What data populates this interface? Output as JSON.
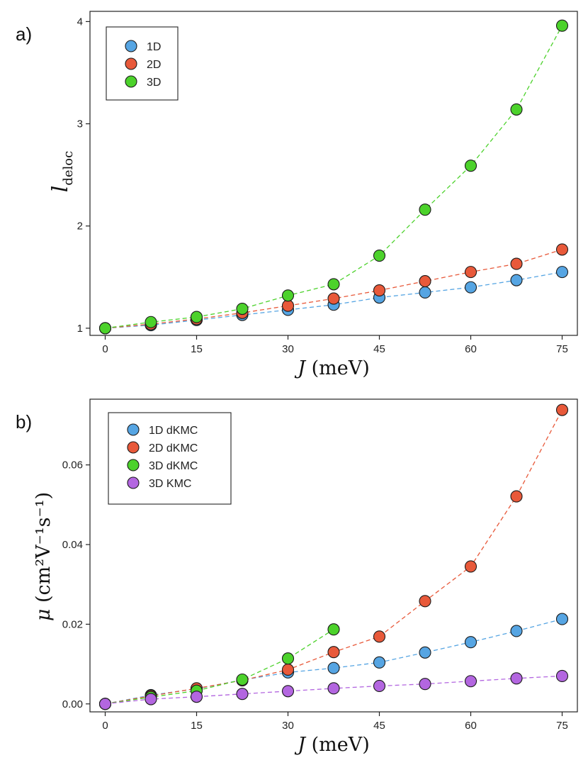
{
  "chart_data": [
    {
      "type": "line",
      "panel_label": "a)",
      "xlabel": {
        "sym": "J",
        "unit": " (meV)"
      },
      "ylabel": {
        "sym": "l",
        "sub": "deloc"
      },
      "xlim": [
        -2.5,
        77.5
      ],
      "ylim": [
        0.93,
        4.1
      ],
      "xticks": [
        0,
        15,
        30,
        45,
        60,
        75
      ],
      "yticks": [
        1,
        2,
        3,
        4
      ],
      "ytick_labels": [
        "1",
        "2",
        "3",
        "4"
      ],
      "legend_position": "top-left",
      "series": [
        {
          "name": "1D",
          "color": "#56a5e3",
          "x": [
            0,
            7.5,
            15,
            22.5,
            30,
            37.5,
            45,
            52.5,
            60,
            67.5,
            75
          ],
          "y": [
            1.0,
            1.03,
            1.08,
            1.13,
            1.18,
            1.23,
            1.3,
            1.35,
            1.4,
            1.47,
            1.55
          ]
        },
        {
          "name": "2D",
          "color": "#e8593a",
          "x": [
            0,
            7.5,
            15,
            22.5,
            30,
            37.5,
            45,
            52.5,
            60,
            67.5,
            75
          ],
          "y": [
            1.0,
            1.04,
            1.09,
            1.15,
            1.22,
            1.29,
            1.37,
            1.46,
            1.55,
            1.63,
            1.77
          ]
        },
        {
          "name": "3D",
          "color": "#4cd22b",
          "x": [
            0,
            7.5,
            15,
            22.5,
            30,
            37.5,
            45,
            52.5,
            60,
            67.5,
            75
          ],
          "y": [
            1.0,
            1.06,
            1.11,
            1.19,
            1.32,
            1.43,
            1.71,
            2.16,
            2.59,
            3.14,
            3.96
          ]
        }
      ]
    },
    {
      "type": "line",
      "panel_label": "b)",
      "xlabel": {
        "sym": "J",
        "unit": " (meV)"
      },
      "ylabel": {
        "sym": "μ",
        "unit": "cm²V⁻¹s⁻¹"
      },
      "xlim": [
        -2.5,
        77.5
      ],
      "ylim": [
        -0.002,
        0.0765
      ],
      "xticks": [
        0,
        15,
        30,
        45,
        60,
        75
      ],
      "yticks": [
        0.0,
        0.02,
        0.04,
        0.06
      ],
      "ytick_labels": [
        "0.00",
        "0.02",
        "0.04",
        "0.06"
      ],
      "legend_position": "top-left",
      "series": [
        {
          "name": "1D dKMC",
          "color": "#56a5e3",
          "x": [
            0,
            7.5,
            15,
            22.5,
            30,
            37.5,
            45,
            52.5,
            60,
            67.5,
            75
          ],
          "y": [
            0.0,
            0.0022,
            0.0038,
            0.006,
            0.0079,
            0.009,
            0.0104,
            0.0129,
            0.0155,
            0.0183,
            0.0213
          ]
        },
        {
          "name": "2D dKMC",
          "color": "#e8593a",
          "x": [
            0,
            7.5,
            15,
            22.5,
            30,
            37.5,
            45,
            52.5,
            60,
            67.5,
            75
          ],
          "y": [
            0.0,
            0.002,
            0.0039,
            0.0059,
            0.0086,
            0.013,
            0.0169,
            0.0258,
            0.0345,
            0.0521,
            0.0738
          ]
        },
        {
          "name": "3D dKMC",
          "color": "#4cd22b",
          "x": [
            0,
            7.5,
            15,
            22.5,
            30,
            37.5
          ],
          "y": [
            0.0,
            0.0017,
            0.0033,
            0.0061,
            0.0114,
            0.0187
          ]
        },
        {
          "name": "3D KMC",
          "color": "#b366e0",
          "x": [
            0,
            7.5,
            15,
            22.5,
            30,
            37.5,
            45,
            52.5,
            60,
            67.5,
            75
          ],
          "y": [
            0.0,
            0.0012,
            0.0018,
            0.0025,
            0.0032,
            0.0039,
            0.0045,
            0.005,
            0.0057,
            0.0064,
            0.007
          ]
        }
      ]
    }
  ]
}
